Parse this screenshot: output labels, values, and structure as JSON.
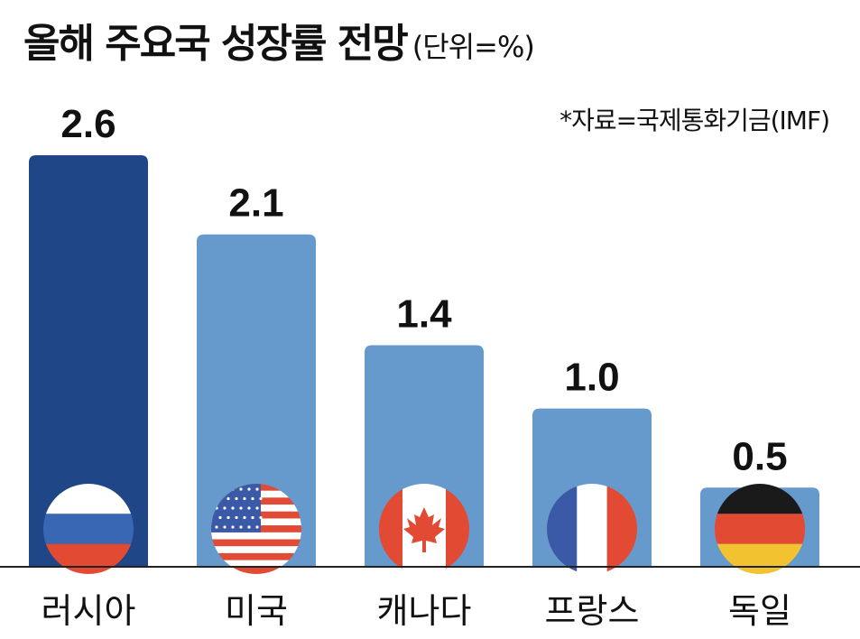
{
  "header": {
    "title": "올해 주요국 성장률 전망",
    "unit": "(단위=%)",
    "source": "*자료=국제통화기금(IMF)"
  },
  "colors": {
    "highlight_bar": "#1f4687",
    "bar": "#6699cc",
    "baseline": "#222222"
  },
  "chart_data": {
    "type": "bar",
    "title": "올해 주요국 성장률 전망",
    "unit": "(단위=%)",
    "categories": [
      "러시아",
      "미국",
      "캐나다",
      "프랑스",
      "독일"
    ],
    "values": [
      2.6,
      2.1,
      1.4,
      1.0,
      0.5
    ],
    "value_labels": [
      "2.6",
      "2.1",
      "1.4",
      "1.0",
      "0.5"
    ],
    "flags": [
      "russia-flag-icon",
      "usa-flag-icon",
      "canada-flag-icon",
      "france-flag-icon",
      "germany-flag-icon"
    ],
    "highlight_index": 0,
    "ylim": [
      0,
      2.6
    ],
    "grid": false,
    "legend": "none"
  }
}
